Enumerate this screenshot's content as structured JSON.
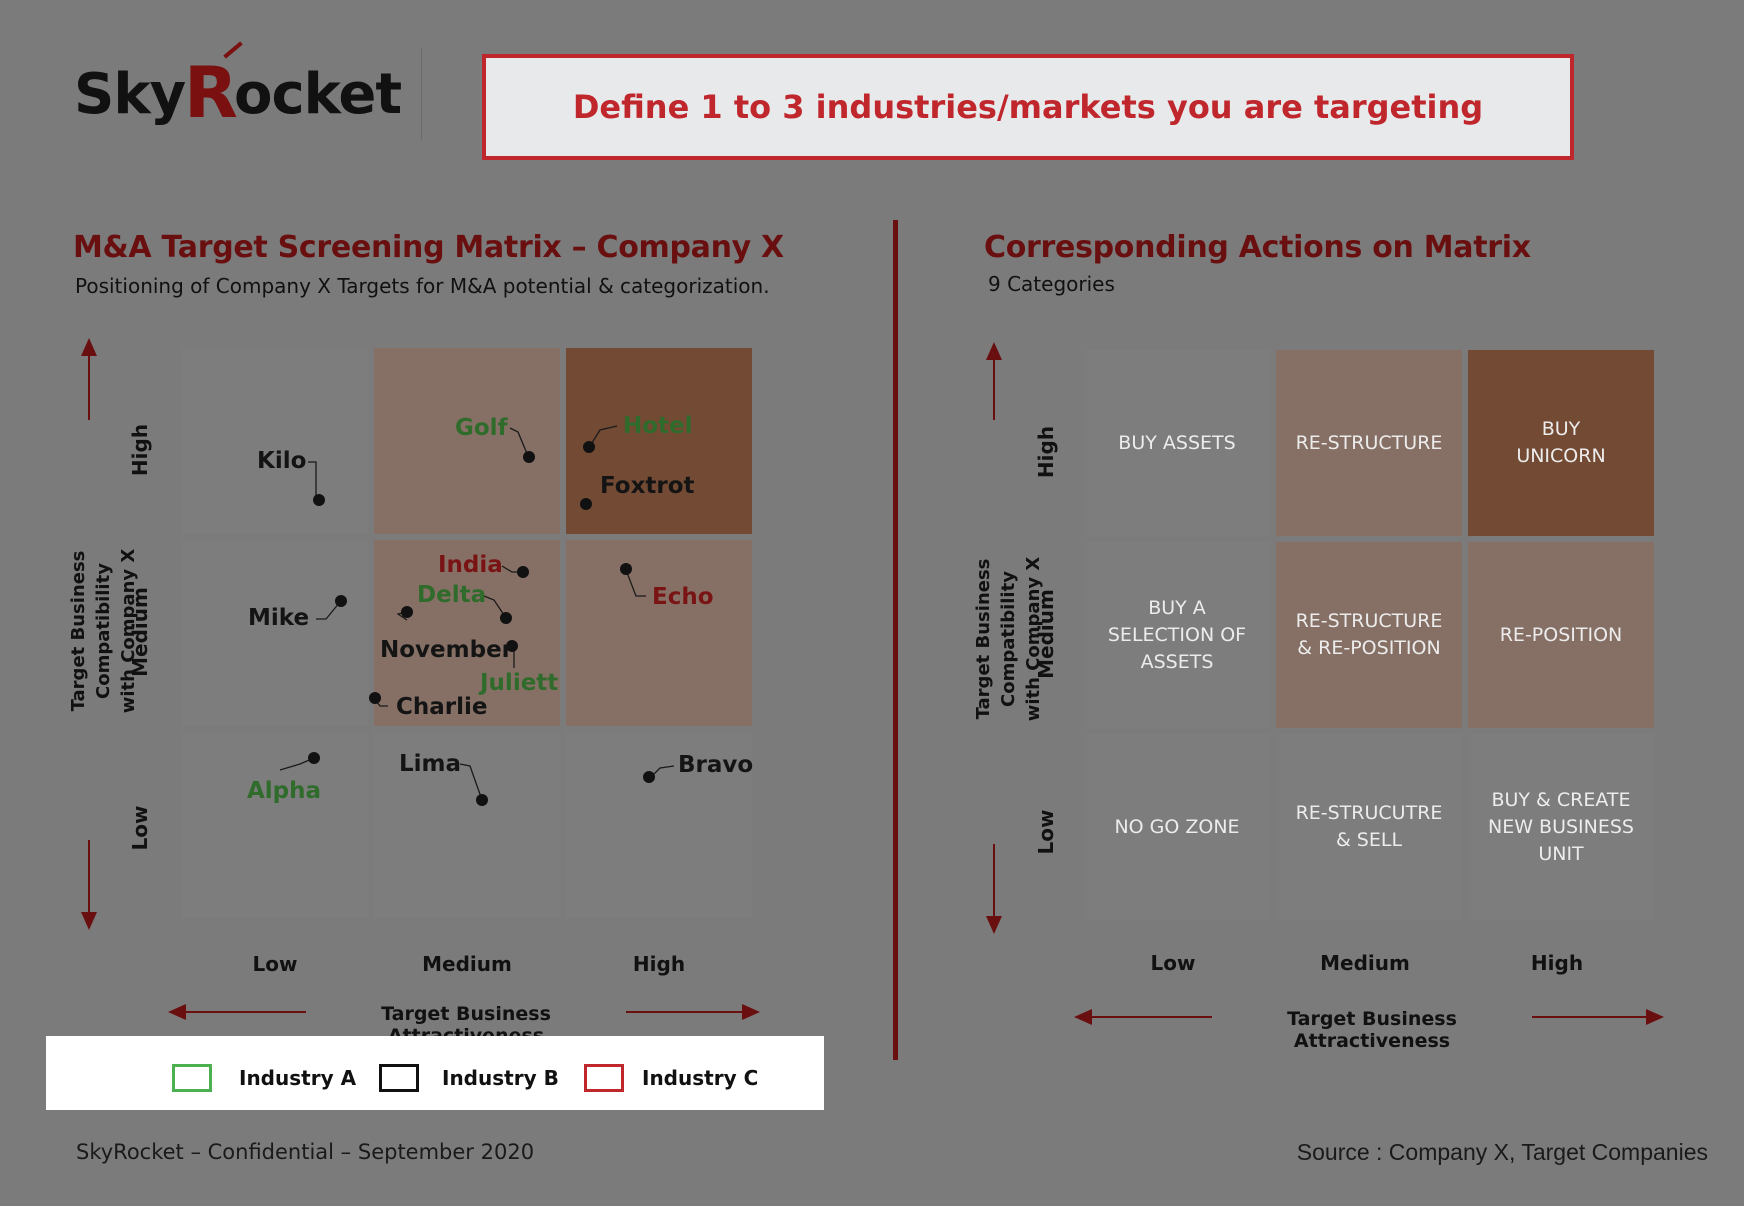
{
  "logo": {
    "part1": "Sky",
    "part2": "R",
    "part3": "ocket"
  },
  "banner": "Define 1 to 3 industries/markets you are targeting",
  "left": {
    "title": "M&A Target Screening Matrix – Company X",
    "subtitle": "Positioning of Company X Targets for M&A potential & categorization.",
    "y_axis_title": "Target Business Compatibility\nwith Company X",
    "x_axis_title": "Target Business Attractiveness",
    "row_labels": [
      "High",
      "Medium",
      "Low"
    ],
    "col_labels": [
      "Low",
      "Medium",
      "High"
    ]
  },
  "right": {
    "title": "Corresponding Actions on Matrix",
    "subtitle": "9 Categories",
    "y_axis_title": "Target Business Compatibility\nwith Company X",
    "x_axis_title": "Target Business Attractiveness",
    "row_labels": [
      "High",
      "Medium",
      "Low"
    ],
    "col_labels": [
      "Low",
      "Medium",
      "High"
    ],
    "cells": [
      [
        "BUY ASSETS",
        "RE-STRUCTURE",
        "BUY\nUNICORN"
      ],
      [
        "BUY A\nSELECTION OF\nASSETS",
        "RE-STRUCTURE\n& RE-POSITION",
        "RE-POSITION"
      ],
      [
        "NO GO ZONE",
        "RE-STRUCUTRE\n& SELL",
        "BUY & CREATE\nNEW BUSINESS\nUNIT"
      ]
    ]
  },
  "targets": [
    {
      "name": "Kilo",
      "industry": "B"
    },
    {
      "name": "Golf",
      "industry": "A"
    },
    {
      "name": "Hotel",
      "industry": "A"
    },
    {
      "name": "Foxtrot",
      "industry": "B"
    },
    {
      "name": "Mike",
      "industry": "B"
    },
    {
      "name": "India",
      "industry": "C"
    },
    {
      "name": "Delta",
      "industry": "A"
    },
    {
      "name": "November",
      "industry": "B"
    },
    {
      "name": "Juliett",
      "industry": "A"
    },
    {
      "name": "Charlie",
      "industry": "B"
    },
    {
      "name": "Echo",
      "industry": "C"
    },
    {
      "name": "Alpha",
      "industry": "A"
    },
    {
      "name": "Lima",
      "industry": "B"
    },
    {
      "name": "Bravo",
      "industry": "B"
    }
  ],
  "legend": [
    {
      "label": "Industry A",
      "color": "#4caf50"
    },
    {
      "label": "Industry B",
      "color": "#111111"
    },
    {
      "label": "Industry C",
      "color": "#c0272d"
    }
  ],
  "footer_left": "SkyRocket – Confidential – September 2020",
  "footer_right": "Source : Company X, Target Companies"
}
